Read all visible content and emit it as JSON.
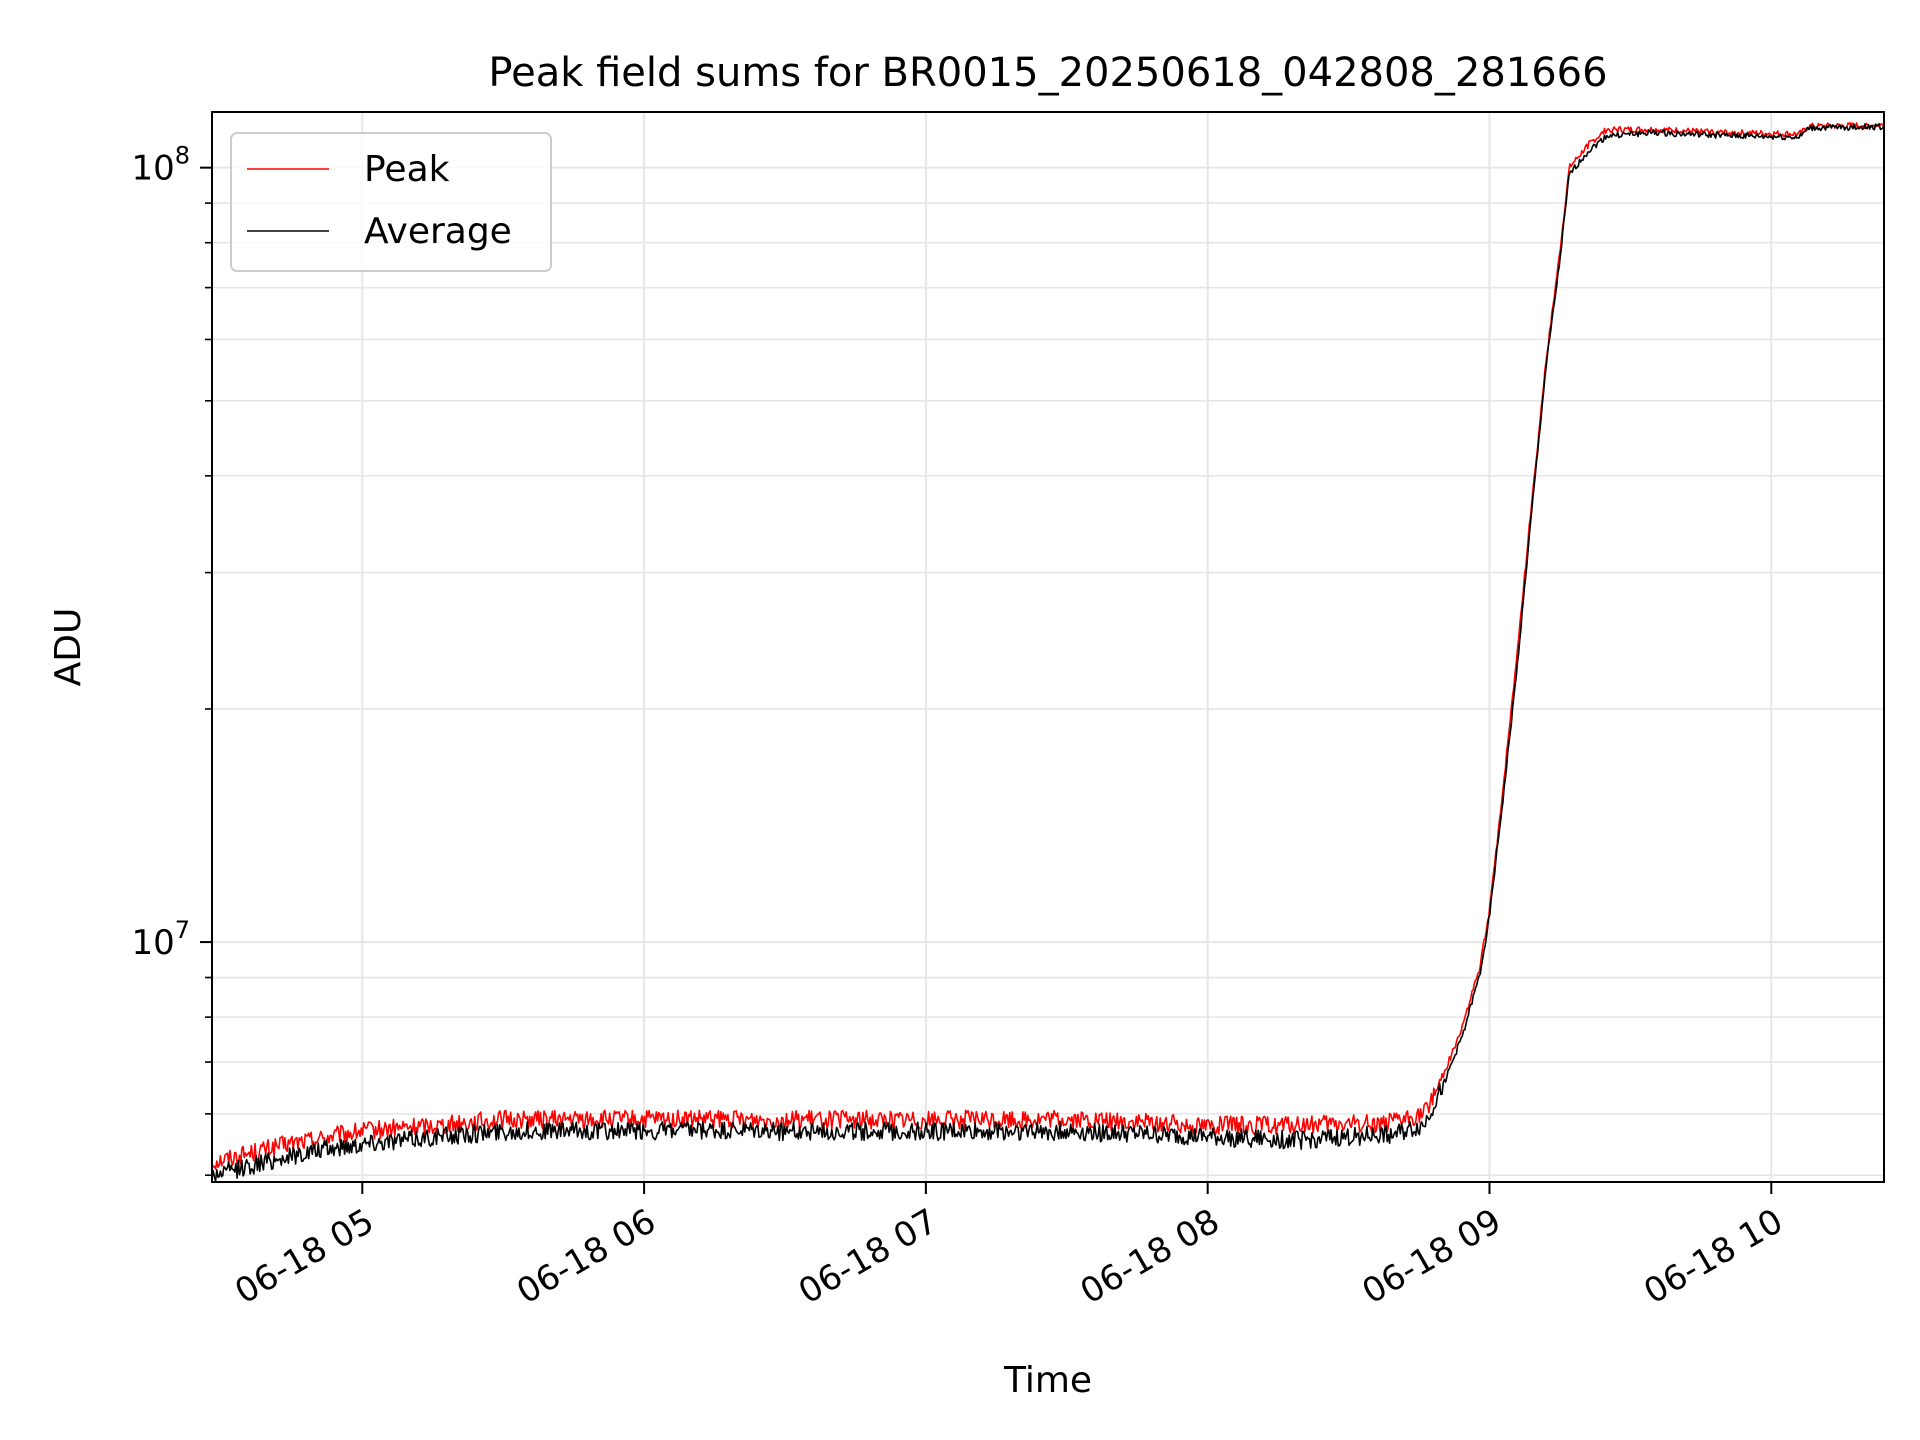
{
  "chart_data": {
    "type": "line",
    "title": "Peak field sums for BR0015_20250618_042808_281666",
    "xlabel": "Time",
    "ylabel": "ADU",
    "yscale": "log",
    "xlim": [
      "2025-06-18 04:28",
      "2025-06-18 10:24"
    ],
    "ylim": [
      4900000,
      118000000
    ],
    "grid": true,
    "legend": {
      "position": "top-left",
      "entries": [
        "Peak",
        "Average"
      ]
    },
    "x_ticks": [
      {
        "time": "2025-06-18 05:00",
        "label": "06-18 05"
      },
      {
        "time": "2025-06-18 06:00",
        "label": "06-18 06"
      },
      {
        "time": "2025-06-18 07:00",
        "label": "06-18 07"
      },
      {
        "time": "2025-06-18 08:00",
        "label": "06-18 08"
      },
      {
        "time": "2025-06-18 09:00",
        "label": "06-18 09"
      },
      {
        "time": "2025-06-18 10:00",
        "label": "06-18 10"
      }
    ],
    "y_ticks": [
      {
        "value": 10000000,
        "base": "10",
        "exp": "7"
      },
      {
        "value": 100000000,
        "base": "10",
        "exp": "8"
      }
    ],
    "x": [
      "2025-06-18 04:28",
      "2025-06-18 04:45",
      "2025-06-18 05:00",
      "2025-06-18 05:15",
      "2025-06-18 05:30",
      "2025-06-18 06:00",
      "2025-06-18 06:30",
      "2025-06-18 07:00",
      "2025-06-18 07:30",
      "2025-06-18 08:00",
      "2025-06-18 08:20",
      "2025-06-18 08:40",
      "2025-06-18 08:46",
      "2025-06-18 08:50",
      "2025-06-18 08:54",
      "2025-06-18 08:58",
      "2025-06-18 09:00",
      "2025-06-18 09:03",
      "2025-06-18 09:06",
      "2025-06-18 09:09",
      "2025-06-18 09:12",
      "2025-06-18 09:15",
      "2025-06-18 09:17",
      "2025-06-18 09:21",
      "2025-06-18 09:25",
      "2025-06-18 09:35",
      "2025-06-18 09:50",
      "2025-06-18 10:06",
      "2025-06-18 10:08",
      "2025-06-18 10:24"
    ],
    "series": [
      {
        "name": "Peak",
        "color": "#ff0000",
        "values": [
          5200000,
          5500000,
          5700000,
          5800000,
          5900000,
          5900000,
          5900000,
          5900000,
          5900000,
          5800000,
          5800000,
          5850000,
          6000000,
          6700000,
          7700000,
          9300000,
          11000000,
          16000000,
          24000000,
          37000000,
          56000000,
          78000000,
          100000000,
          107000000,
          112000000,
          112000000,
          111000000,
          110500000,
          113000000,
          113500000
        ]
      },
      {
        "name": "Average",
        "color": "#000000",
        "values": [
          5000000,
          5300000,
          5500000,
          5600000,
          5700000,
          5700000,
          5700000,
          5700000,
          5700000,
          5600000,
          5550000,
          5650000,
          5800000,
          6500000,
          7500000,
          9100000,
          10800000,
          15500000,
          23000000,
          36000000,
          55000000,
          76000000,
          98000000,
          105000000,
          110000000,
          111000000,
          110000000,
          109500000,
          112500000,
          113000000
        ]
      }
    ]
  }
}
